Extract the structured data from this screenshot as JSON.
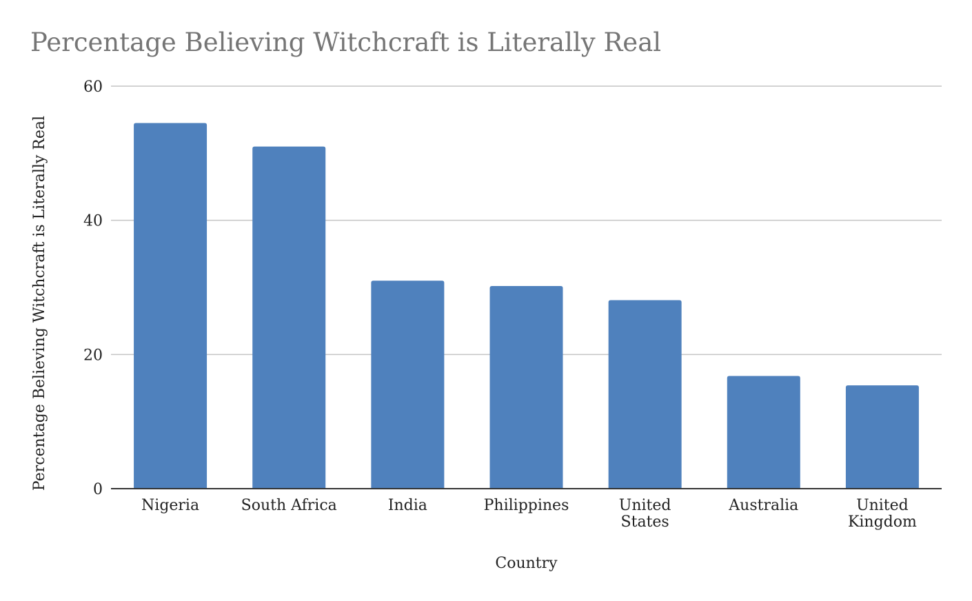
{
  "chart_data": {
    "type": "bar",
    "title": "Percentage Believing Witchcraft is Literally Real",
    "xlabel": "Country",
    "ylabel": "Percentage Believing Witchcraft is Literally Real",
    "categories": [
      "Nigeria",
      "South Africa",
      "India",
      "Philippines",
      "United States",
      "Australia",
      "United Kingdom"
    ],
    "values": [
      54.5,
      51,
      31,
      30.2,
      28.1,
      16.8,
      15.4
    ],
    "ylim": [
      0,
      60
    ],
    "yticks": [
      0,
      20,
      40,
      60
    ],
    "grid": true,
    "legend": "none",
    "bar_color": "#4f81bd",
    "gridline_color": "#c4c4c4",
    "axis_color": "#333333",
    "title_color": "#757575",
    "text_color": "#222222"
  }
}
